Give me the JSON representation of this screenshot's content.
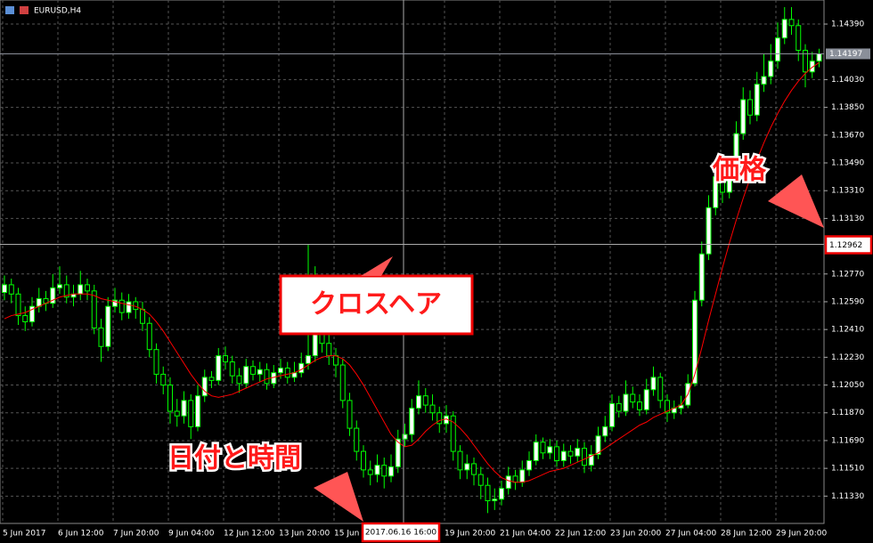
{
  "chart_data": {
    "type": "candlestick",
    "title": "EURUSD,H4",
    "categories": [
      "5 Jun 2017",
      null,
      null,
      null,
      null,
      null,
      null,
      null,
      "6 Jun 12:00",
      null,
      null,
      null,
      null,
      null,
      null,
      null,
      "7 Jun 20:00",
      null,
      null,
      null,
      null,
      null,
      null,
      null,
      "9 Jun 04:00",
      null,
      null,
      null,
      null,
      null,
      null,
      null,
      "12 Jun 12:00",
      null,
      null,
      null,
      null,
      null,
      null,
      null,
      "13 Jun 20:00",
      null,
      null,
      null,
      null,
      null,
      null,
      null,
      "15 Jun",
      null,
      null,
      null,
      null,
      null,
      null,
      null,
      null,
      null,
      null,
      null,
      null,
      null,
      null,
      null,
      "19 Jun 20:00",
      null,
      null,
      null,
      null,
      null,
      null,
      null,
      "21 Jun 04:00",
      null,
      null,
      null,
      null,
      null,
      null,
      null,
      "22 Jun 12:00",
      null,
      null,
      null,
      null,
      null,
      null,
      null,
      "23 Jun 20:00",
      null,
      null,
      null,
      null,
      null,
      null,
      null,
      "27 Jun 04:00",
      null,
      null,
      null,
      null,
      null,
      null,
      null,
      "28 Jun 12:00",
      null,
      null,
      null,
      null,
      null,
      null,
      null,
      "29 Jun 20:00",
      null,
      null,
      null,
      null,
      null,
      null
    ],
    "open": [
      1.1265,
      1.127,
      1.1264,
      1.125,
      1.1246,
      1.1256,
      1.1261,
      1.1258,
      1.1268,
      1.127,
      1.1262,
      1.1264,
      1.127,
      1.1266,
      1.1242,
      1.123,
      1.1256,
      1.126,
      1.1252,
      1.1259,
      1.1254,
      1.1245,
      1.1228,
      1.1212,
      1.1205,
      1.1188,
      1.1185,
      1.1195,
      1.1178,
      1.1198,
      1.121,
      1.1208,
      1.1224,
      1.122,
      1.1211,
      1.1206,
      1.1217,
      1.1212,
      1.1215,
      1.1206,
      1.1213,
      1.1216,
      1.121,
      1.1213,
      1.1219,
      1.1224,
      1.1242,
      1.1232,
      1.1224,
      1.1218,
      1.1195,
      1.1177,
      1.1162,
      1.115,
      1.1147,
      1.1153,
      1.1146,
      1.1152,
      1.117,
      1.1173,
      1.119,
      1.1198,
      1.1192,
      1.1187,
      1.118,
      1.1185,
      1.1162,
      1.115,
      1.1154,
      1.1147,
      1.114,
      1.113,
      1.1131,
      1.1138,
      1.1146,
      1.1142,
      1.115,
      1.1156,
      1.1168,
      1.1161,
      1.1165,
      1.1156,
      1.1162,
      1.1159,
      1.1164,
      1.1153,
      1.116,
      1.1172,
      1.1178,
      1.1193,
      1.1188,
      1.1199,
      1.1194,
      1.1189,
      1.1202,
      1.121,
      1.1195,
      1.1187,
      1.119,
      1.1192,
      1.1206,
      1.126,
      1.129,
      1.132,
      1.134,
      1.133,
      1.1345,
      1.1368,
      1.139,
      1.138,
      1.14,
      1.1405,
      1.1415,
      1.143,
      1.1442,
      1.1438,
      1.1422,
      1.1408,
      1.1415
    ],
    "high": [
      1.1276,
      1.1274,
      1.1268,
      1.1256,
      1.1262,
      1.1268,
      1.1266,
      1.1277,
      1.1282,
      1.1276,
      1.127,
      1.1279,
      1.1274,
      1.127,
      1.1248,
      1.1262,
      1.1268,
      1.1265,
      1.1264,
      1.1262,
      1.1259,
      1.1249,
      1.1232,
      1.1217,
      1.121,
      1.1196,
      1.1201,
      1.1199,
      1.1205,
      1.1215,
      1.1214,
      1.1229,
      1.123,
      1.1224,
      1.1216,
      1.1222,
      1.1221,
      1.122,
      1.1219,
      1.1218,
      1.1222,
      1.122,
      1.122,
      1.1226,
      1.1296,
      1.1282,
      1.1248,
      1.124,
      1.1229,
      1.1222,
      1.12,
      1.1182,
      1.1166,
      1.1156,
      1.116,
      1.1158,
      1.116,
      1.1176,
      1.118,
      1.1196,
      1.1208,
      1.1203,
      1.1199,
      1.1191,
      1.1192,
      1.1188,
      1.1166,
      1.116,
      1.1158,
      1.1152,
      1.1145,
      1.1138,
      1.1143,
      1.1152,
      1.115,
      1.1156,
      1.1162,
      1.1173,
      1.1171,
      1.117,
      1.1169,
      1.1167,
      1.1166,
      1.117,
      1.1168,
      1.1166,
      1.1178,
      1.1185,
      1.1199,
      1.1198,
      1.1208,
      1.1204,
      1.1199,
      1.1209,
      1.1217,
      1.1213,
      1.1199,
      1.1195,
      1.1198,
      1.1212,
      1.1266,
      1.1298,
      1.1328,
      1.1346,
      1.1348,
      1.1352,
      1.1376,
      1.1398,
      1.1396,
      1.1408,
      1.142,
      1.1426,
      1.144,
      1.145,
      1.145,
      1.1442,
      1.1426,
      1.1421,
      1.1423
    ],
    "low": [
      1.126,
      1.1258,
      1.1244,
      1.124,
      1.1243,
      1.1252,
      1.1253,
      1.1255,
      1.1264,
      1.1258,
      1.1256,
      1.126,
      1.126,
      1.1238,
      1.122,
      1.1227,
      1.1252,
      1.1247,
      1.1248,
      1.1248,
      1.124,
      1.1223,
      1.1206,
      1.1199,
      1.118,
      1.1178,
      1.118,
      1.117,
      1.1175,
      1.1194,
      1.1203,
      1.1205,
      1.1215,
      1.1206,
      1.12,
      1.1203,
      1.1208,
      1.1207,
      1.1202,
      1.1203,
      1.1209,
      1.1206,
      1.1207,
      1.121,
      1.1215,
      1.122,
      1.1226,
      1.1218,
      1.121,
      1.119,
      1.1172,
      1.1156,
      1.1145,
      1.114,
      1.1142,
      1.1138,
      1.1142,
      1.1148,
      1.1165,
      1.1168,
      1.1186,
      1.1187,
      1.1182,
      1.1174,
      1.1174,
      1.1156,
      1.1144,
      1.1144,
      1.114,
      1.1131,
      1.1122,
      1.1124,
      1.1127,
      1.1134,
      1.1137,
      1.1139,
      1.1146,
      1.1153,
      1.1157,
      1.1157,
      1.1152,
      1.1152,
      1.1154,
      1.1155,
      1.1148,
      1.1149,
      1.1157,
      1.1168,
      1.1175,
      1.1184,
      1.1185,
      1.119,
      1.1185,
      1.1186,
      1.1198,
      1.119,
      1.1181,
      1.1183,
      1.1186,
      1.119,
      1.1204,
      1.1256,
      1.1286,
      1.1315,
      1.1323,
      1.1326,
      1.1341,
      1.1364,
      1.1374,
      1.1376,
      1.1395,
      1.14,
      1.141,
      1.1426,
      1.1432,
      1.1415,
      1.1398,
      1.1404,
      1.1411
    ],
    "close": [
      1.127,
      1.1264,
      1.125,
      1.1246,
      1.1256,
      1.1261,
      1.1258,
      1.1268,
      1.127,
      1.1262,
      1.1264,
      1.127,
      1.1266,
      1.1242,
      1.123,
      1.1256,
      1.126,
      1.1252,
      1.1259,
      1.1254,
      1.1245,
      1.1228,
      1.1212,
      1.1205,
      1.1188,
      1.1185,
      1.1195,
      1.1178,
      1.1198,
      1.121,
      1.1208,
      1.1224,
      1.122,
      1.1211,
      1.1206,
      1.1217,
      1.1212,
      1.1215,
      1.1206,
      1.1213,
      1.1216,
      1.121,
      1.1213,
      1.1219,
      1.1224,
      1.1242,
      1.1232,
      1.1224,
      1.1218,
      1.1195,
      1.1177,
      1.1162,
      1.115,
      1.1147,
      1.1153,
      1.1146,
      1.1152,
      1.117,
      1.1173,
      1.119,
      1.1198,
      1.1192,
      1.1187,
      1.118,
      1.1185,
      1.1162,
      1.115,
      1.1154,
      1.1147,
      1.114,
      1.113,
      1.1131,
      1.1138,
      1.1146,
      1.1142,
      1.115,
      1.1156,
      1.1168,
      1.1161,
      1.1165,
      1.1156,
      1.1162,
      1.1159,
      1.1164,
      1.1153,
      1.116,
      1.1172,
      1.1178,
      1.1193,
      1.1188,
      1.1199,
      1.1194,
      1.1189,
      1.1202,
      1.121,
      1.1195,
      1.1187,
      1.119,
      1.1192,
      1.1206,
      1.126,
      1.129,
      1.132,
      1.134,
      1.133,
      1.1345,
      1.1368,
      1.139,
      1.138,
      1.14,
      1.1405,
      1.1415,
      1.143,
      1.1442,
      1.1438,
      1.1422,
      1.1408,
      1.1415,
      1.14197
    ],
    "up_color": "#ffffff",
    "down_color": "#000000",
    "wick_color": "#00ff00",
    "ma": {
      "color": "#ff0000",
      "values": [
        1.1248,
        1.125,
        1.1251,
        1.1252,
        1.1254,
        1.1256,
        1.1258,
        1.126,
        1.1262,
        1.1263,
        1.1264,
        1.1264,
        1.1264,
        1.1263,
        1.1261,
        1.126,
        1.1259,
        1.1258,
        1.1257,
        1.1256,
        1.1254,
        1.1251,
        1.1246,
        1.124,
        1.1233,
        1.1226,
        1.1219,
        1.1212,
        1.1206,
        1.1201,
        1.1198,
        1.1197,
        1.1198,
        1.1199,
        1.1201,
        1.1203,
        1.1205,
        1.1207,
        1.1209,
        1.121,
        1.1211,
        1.1212,
        1.1213,
        1.1215,
        1.1218,
        1.1221,
        1.1223,
        1.1224,
        1.1224,
        1.1222,
        1.1218,
        1.1212,
        1.1205,
        1.1197,
        1.1189,
        1.1181,
        1.1173,
        1.1168,
        1.1165,
        1.1166,
        1.117,
        1.1175,
        1.1179,
        1.1182,
        1.1183,
        1.1181,
        1.1177,
        1.1172,
        1.1166,
        1.116,
        1.1154,
        1.1149,
        1.1145,
        1.1143,
        1.1142,
        1.1142,
        1.1143,
        1.1145,
        1.1147,
        1.1149,
        1.115,
        1.1151,
        1.1153,
        1.1155,
        1.1157,
        1.1159,
        1.1161,
        1.1164,
        1.1167,
        1.117,
        1.1173,
        1.1176,
        1.1179,
        1.1181,
        1.1184,
        1.1186,
        1.1188,
        1.119,
        1.1192,
        1.1199,
        1.1212,
        1.1229,
        1.1247,
        1.1264,
        1.1281,
        1.1297,
        1.1312,
        1.1326,
        1.1339,
        1.1351,
        1.1362,
        1.1372,
        1.1381,
        1.1389,
        1.1396,
        1.1402,
        1.1407,
        1.1411,
        1.1414
      ]
    },
    "ylim": [
      1.11153,
      1.14546
    ],
    "yticks": [
      {
        "value": 1.1439,
        "label": "1.14390"
      },
      {
        "value": 1.1403,
        "label": "1.14030"
      },
      {
        "value": 1.1385,
        "label": "1.13850"
      },
      {
        "value": 1.1367,
        "label": "1.13670"
      },
      {
        "value": 1.1349,
        "label": "1.13490"
      },
      {
        "value": 1.1331,
        "label": "1.13310"
      },
      {
        "value": 1.1313,
        "label": "1.13130"
      },
      {
        "value": 1.1277,
        "label": "1.12770"
      },
      {
        "value": 1.1259,
        "label": "1.12590"
      },
      {
        "value": 1.1241,
        "label": "1.12410"
      },
      {
        "value": 1.1223,
        "label": "1.12230"
      },
      {
        "value": 1.1205,
        "label": "1.12050"
      },
      {
        "value": 1.1187,
        "label": "1.11870"
      },
      {
        "value": 1.1169,
        "label": "1.11690"
      },
      {
        "value": 1.1151,
        "label": "1.11510"
      },
      {
        "value": 1.1133,
        "label": "1.11330"
      }
    ],
    "grid": true,
    "last_price": 1.14197,
    "crosshair": {
      "price": 1.12962,
      "time": "2017.06.16 16:00"
    },
    "annotations": {
      "price": "価格",
      "crosshair": "クロスヘア",
      "time": "日付と時間"
    }
  }
}
